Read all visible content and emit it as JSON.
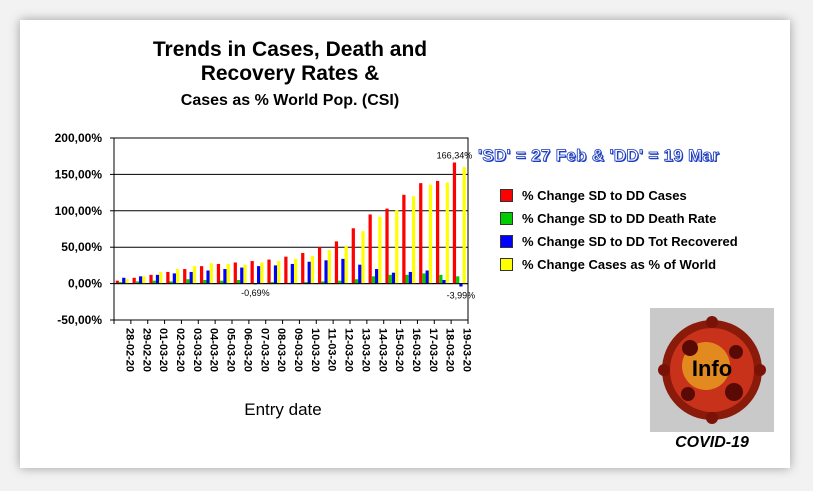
{
  "title_lines": [
    "Trends in Cases, Death and",
    "Recovery Rates &",
    "Cases as % World Pop. (CSI)"
  ],
  "note": "'SD' = 27 Feb & 'DD' = 19 Mar",
  "logo_text": "Info",
  "logo_caption": "COVID-19",
  "colors": {
    "cases": "#ff0000",
    "death": "#00cc00",
    "recovered": "#0000ff",
    "world": "#ffff00"
  },
  "chart_data": {
    "type": "bar",
    "xlabel": "Entry date",
    "ylabel": "",
    "ylim": [
      -50,
      200
    ],
    "yticks": [
      "-50,00%",
      "0,00%",
      "50,00%",
      "100,00%",
      "150,00%",
      "200,00%"
    ],
    "grid": true,
    "legend_position": "right",
    "categories": [
      "28-02-20",
      "29-02-20",
      "01-03-20",
      "02-03-20",
      "03-03-20",
      "04-03-20",
      "05-03-20",
      "06-03-20",
      "07-03-20",
      "08-03-20",
      "09-03-20",
      "10-03-20",
      "11-03-20",
      "12-03-20",
      "13-03-20",
      "14-03-20",
      "15-03-20",
      "16-03-20",
      "17-03-20",
      "18-03-20",
      "19-03-20"
    ],
    "series": [
      {
        "name": "% Change SD to DD Cases",
        "values": [
          4,
          8,
          12,
          16,
          20,
          24,
          27,
          29,
          31,
          33,
          37,
          42,
          50,
          58,
          76,
          95,
          103,
          122,
          138,
          141,
          166.34
        ]
      },
      {
        "name": "% Change SD to DD Death Rate",
        "values": [
          2,
          3,
          4,
          3,
          6,
          5,
          4,
          5,
          -0.69,
          2,
          1,
          2,
          3,
          4,
          6,
          10,
          12,
          12,
          14,
          12,
          10
        ]
      },
      {
        "name": "% Change SD to DD Tot Recovered",
        "values": [
          8,
          10,
          12,
          14,
          16,
          18,
          20,
          22,
          24,
          25,
          27,
          30,
          32,
          34,
          26,
          20,
          15,
          16,
          18,
          5,
          -3.99
        ]
      },
      {
        "name": "% Change Cases as % of World",
        "values": [
          6,
          10,
          16,
          20,
          24,
          28,
          27,
          26,
          29,
          31,
          34,
          38,
          46,
          52,
          72,
          92,
          101,
          120,
          136,
          139,
          160
        ]
      }
    ],
    "data_labels": [
      {
        "category_index": 8,
        "series_index": 1,
        "text": "-0,69%"
      },
      {
        "category_index": 20,
        "series_index": 0,
        "text": "166,34%"
      },
      {
        "category_index": 20,
        "series_index": 2,
        "text": "-3,99%"
      }
    ]
  }
}
